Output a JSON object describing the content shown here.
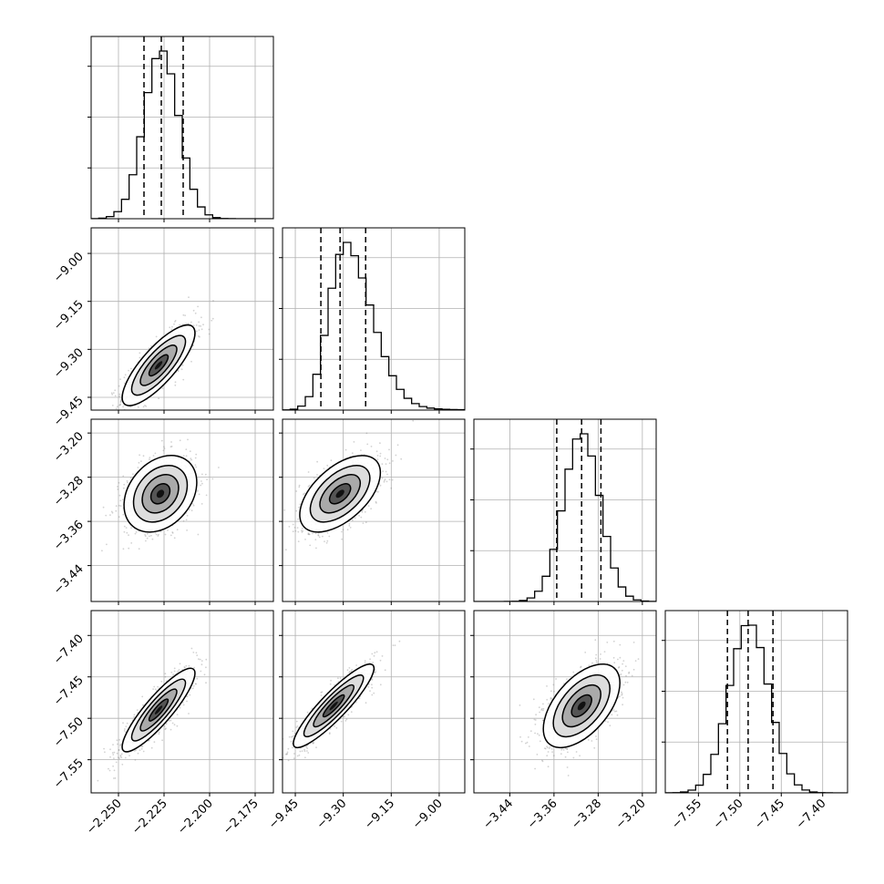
{
  "chart_data": {
    "type": "corner",
    "grid": true,
    "colors": {
      "hist": "#000000",
      "scatter": "#7f7f7f",
      "grid": "#b0b0b0",
      "frame": "#000000"
    },
    "parameters": [
      {
        "range": [
          -2.265,
          -2.165
        ],
        "ticks": [
          -2.25,
          -2.225,
          -2.2,
          -2.175
        ],
        "tick_labels": [
          "−2.250",
          "−2.225",
          "−2.200",
          "−2.175"
        ],
        "mean": -2.2265,
        "sd": 0.0095,
        "quantiles": [
          -2.236,
          -2.2265,
          -2.2145
        ],
        "hist_y_ticks": [
          1,
          2,
          3
        ]
      },
      {
        "range": [
          -9.49,
          -8.92
        ],
        "ticks": [
          -9.45,
          -9.3,
          -9.15,
          -9.0
        ],
        "tick_labels": [
          "−9.45",
          "−9.30",
          "−9.15",
          "−9.00"
        ],
        "mean": -9.3,
        "sd": 0.06,
        "quantiles": [
          -9.37,
          -9.31,
          -9.23
        ],
        "hist_y_ticks": [
          1,
          2,
          3
        ]
      },
      {
        "range": [
          -3.505,
          -3.175
        ],
        "ticks": [
          -3.44,
          -3.36,
          -3.28,
          -3.2
        ],
        "tick_labels": [
          "−3.44",
          "−3.36",
          "−3.28",
          "−3.20"
        ],
        "mean": -3.31,
        "sd": 0.033,
        "quantiles": [
          -3.355,
          -3.31,
          -3.275
        ],
        "hist_y_ticks": [
          1,
          2,
          3
        ]
      },
      {
        "range": [
          -7.59,
          -7.37
        ],
        "ticks": [
          -7.55,
          -7.5,
          -7.45,
          -7.4
        ],
        "tick_labels": [
          "−7.55",
          "−7.50",
          "−7.45",
          "−7.40"
        ],
        "mean": -7.489,
        "sd": 0.024,
        "quantiles": [
          -7.515,
          -7.49,
          -7.46
        ],
        "hist_y_ticks": [
          1,
          2,
          3
        ]
      }
    ],
    "pairs": [
      {
        "x": 0,
        "y": 1,
        "rho": 0.8,
        "mode": [
          -2.228,
          -9.35
        ]
      },
      {
        "x": 0,
        "y": 2,
        "rho": 0.3,
        "mode": [
          -2.227,
          -3.31
        ]
      },
      {
        "x": 1,
        "y": 2,
        "rho": 0.55,
        "mode": [
          -9.31,
          -3.31
        ]
      },
      {
        "x": 0,
        "y": 3,
        "rho": 0.88,
        "mode": [
          -2.228,
          -7.49
        ]
      },
      {
        "x": 1,
        "y": 3,
        "rho": 0.9,
        "mode": [
          -9.33,
          -7.485
        ]
      },
      {
        "x": 2,
        "y": 3,
        "rho": 0.55,
        "mode": [
          -3.31,
          -7.485
        ]
      }
    ]
  }
}
